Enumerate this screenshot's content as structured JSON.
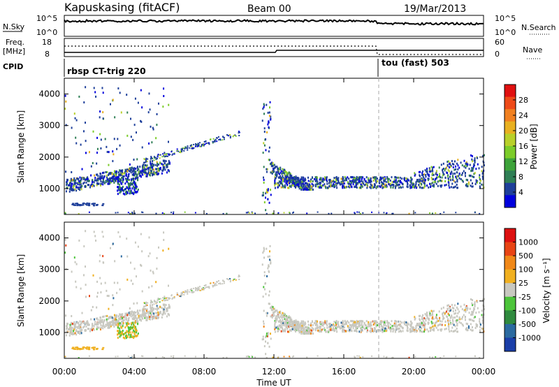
{
  "header": {
    "station": "Kapuskasing (fitACF)",
    "beam": "Beam 00",
    "date": "19/Mar/2013"
  },
  "nsky_panel": {
    "label": "N.Sky",
    "ticks_left": [
      "10^5",
      "10^0"
    ],
    "ticks_right": [
      "10^5",
      "10^0"
    ],
    "right_label": "N.Search"
  },
  "freq_panel": {
    "label_line1": "Freq.",
    "label_line2": "[MHz]",
    "ticks_left": [
      "18",
      "8"
    ],
    "ticks_right": [
      "60",
      "0"
    ],
    "right_label": "Nave",
    "cpid_label": "CPID"
  },
  "cpid": {
    "left": "rbsp CT-trig 220",
    "right": "tou (fast) 503"
  },
  "chart_data": [
    {
      "type": "heatmap",
      "title": "",
      "ylabel": "Slant Range [km]",
      "xlabel": "Time UT",
      "x_range": [
        "00:00",
        "24:00"
      ],
      "ylim": [
        180,
        4500
      ],
      "x_ticks": [
        "00:00",
        "04:00",
        "08:00",
        "12:00",
        "16:00",
        "20:00",
        "00:00"
      ],
      "y_ticks": [
        "1000",
        "2000",
        "3000",
        "4000"
      ],
      "colorbar": {
        "label": "Power [dB]",
        "ticks": [
          "4",
          "8",
          "12",
          "16",
          "20",
          "24",
          "28"
        ],
        "colors": [
          "#0000dd",
          "#1e3f9a",
          "#2f7f55",
          "#3da33a",
          "#7ccc2a",
          "#b8d02a",
          "#e8b020",
          "#f08020",
          "#ee4a18",
          "#e01010"
        ]
      },
      "marker": {
        "time": "18:00"
      }
    },
    {
      "type": "heatmap",
      "title": "",
      "ylabel": "Slant Range [km]",
      "xlabel": "Time UT",
      "x_range": [
        "00:00",
        "24:00"
      ],
      "ylim": [
        180,
        4500
      ],
      "x_ticks": [
        "00:00",
        "04:00",
        "08:00",
        "12:00",
        "16:00",
        "20:00",
        "00:00"
      ],
      "y_ticks": [
        "1000",
        "2000",
        "3000",
        "4000"
      ],
      "colorbar": {
        "label": "Velocity [m s⁻¹]",
        "ticks": [
          "1000",
          "500",
          "100",
          "25",
          "-25",
          "-100",
          "-500",
          "-1000"
        ],
        "colors": [
          "#1a3ea8",
          "#2b6aa0",
          "#2f8a3e",
          "#4cc43a",
          "#c8c8c0",
          "#f0b020",
          "#f08818",
          "#e84414",
          "#dd1010"
        ]
      },
      "marker": {
        "time": "18:00"
      }
    }
  ]
}
